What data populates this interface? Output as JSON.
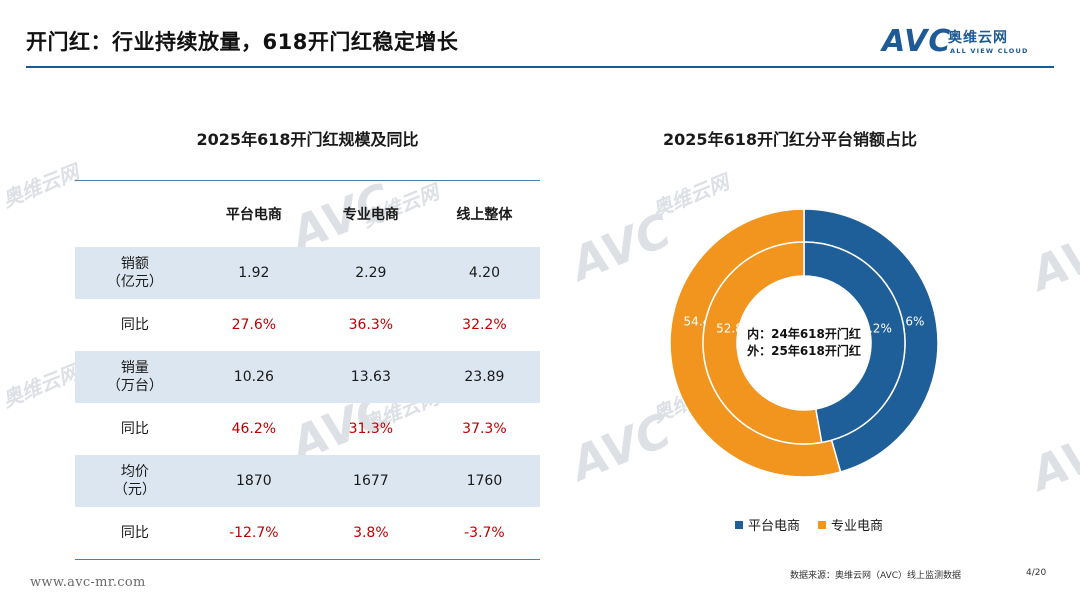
{
  "header": {
    "title": "开门红：行业持续放量，618开门红稳定增长",
    "logo_text": "AVC",
    "logo_cn": "奥维云网",
    "logo_en": "ALL VIEW CLOUD"
  },
  "table": {
    "title": "2025年618开门红规模及同比",
    "columns": [
      "",
      "平台电商",
      "专业电商",
      "线上整体"
    ],
    "rows": [
      {
        "label_line1": "销额",
        "label_line2": "（亿元）",
        "values": [
          "1.92",
          "2.29",
          "4.20"
        ],
        "shaded": true,
        "red": false
      },
      {
        "label_line1": "同比",
        "label_line2": "",
        "values": [
          "27.6%",
          "36.3%",
          "32.2%"
        ],
        "shaded": false,
        "red": true
      },
      {
        "label_line1": "销量",
        "label_line2": "（万台）",
        "values": [
          "10.26",
          "13.63",
          "23.89"
        ],
        "shaded": true,
        "red": false
      },
      {
        "label_line1": "同比",
        "label_line2": "",
        "values": [
          "46.2%",
          "31.3%",
          "37.3%"
        ],
        "shaded": false,
        "red": true
      },
      {
        "label_line1": "均价",
        "label_line2": "（元）",
        "values": [
          "1870",
          "1677",
          "1760"
        ],
        "shaded": true,
        "red": false
      },
      {
        "label_line1": "同比",
        "label_line2": "",
        "values": [
          "-12.7%",
          "3.8%",
          "-3.7%"
        ],
        "shaded": false,
        "red": true
      }
    ]
  },
  "chart_data": {
    "type": "pie",
    "title": "2025年618开门红分平台销额占比",
    "center_text": [
      "内：24年618开门红",
      "外：25年618开门红"
    ],
    "categories": [
      "平台电商",
      "专业电商"
    ],
    "series": [
      {
        "name": "外：25年618开门红",
        "values": [
          45.6,
          54.4
        ]
      },
      {
        "name": "内：24年618开门红",
        "values": [
          47.2,
          52.8
        ]
      }
    ],
    "colors": [
      "#1f5f99",
      "#f2951e"
    ],
    "legend_position": "bottom"
  },
  "footer": {
    "url": "www.avc-mr.com",
    "source": "数据来源：奥维云网（AVC）线上监测数据",
    "page": "4/20"
  },
  "colors": {
    "accent": "#1d5a96",
    "negative": "#c00000",
    "shade": "#dce6f1"
  }
}
